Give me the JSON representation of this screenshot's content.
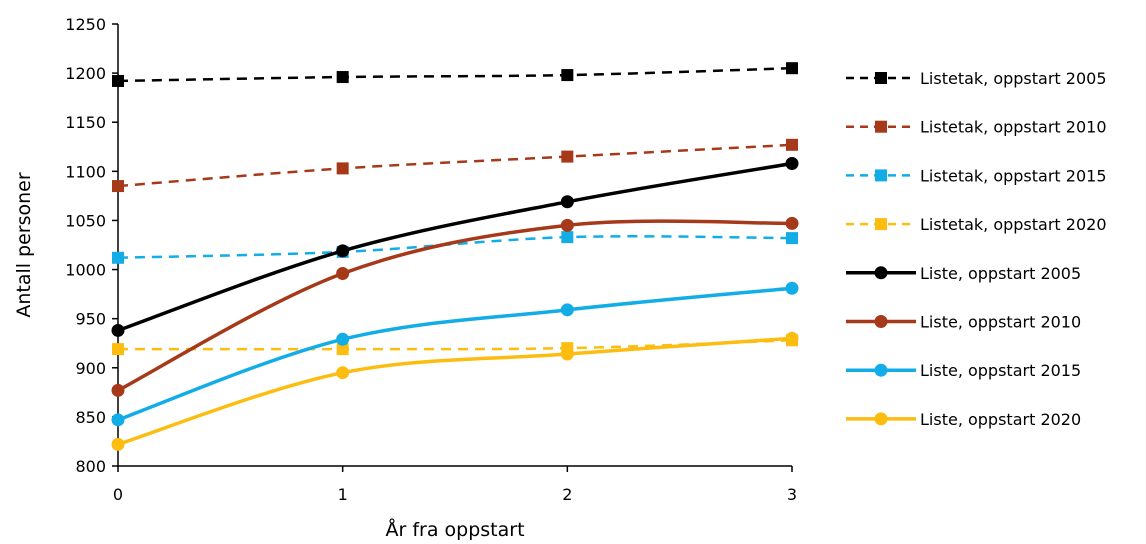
{
  "chart_data": {
    "type": "line",
    "xlabel": "År fra oppstart",
    "ylabel": "Antall personer",
    "x": [
      0,
      1,
      2,
      3
    ],
    "x_tick_labels": [
      "0",
      "1",
      "2",
      "3"
    ],
    "ylim": [
      800,
      1250
    ],
    "y_ticks": [
      800,
      850,
      900,
      950,
      1000,
      1050,
      1100,
      1150,
      1200,
      1250
    ],
    "grid": false,
    "legend_position": "right",
    "series": [
      {
        "name": "Listetak, oppstart 2005",
        "values": [
          1192,
          1196,
          1198,
          1205
        ],
        "color": "#000000",
        "style": "dashed",
        "marker": "square"
      },
      {
        "name": "Listetak, oppstart 2010",
        "values": [
          1085,
          1103,
          1115,
          1127
        ],
        "color": "#a5391a",
        "style": "dashed",
        "marker": "square"
      },
      {
        "name": "Listetak, oppstart 2015",
        "values": [
          1012,
          1018,
          1033,
          1032
        ],
        "color": "#12ade6",
        "style": "dashed",
        "marker": "square"
      },
      {
        "name": "Listetak, oppstart 2020",
        "values": [
          919,
          919,
          920,
          928
        ],
        "color": "#fcbd10",
        "style": "dashed",
        "marker": "square"
      },
      {
        "name": "Liste, oppstart 2005",
        "values": [
          938,
          1019,
          1069,
          1108
        ],
        "color": "#000000",
        "style": "solid",
        "marker": "circle"
      },
      {
        "name": "Liste, oppstart 2010",
        "values": [
          877,
          996,
          1045,
          1047
        ],
        "color": "#a5391a",
        "style": "solid",
        "marker": "circle"
      },
      {
        "name": "Liste, oppstart 2015",
        "values": [
          847,
          929,
          959,
          981
        ],
        "color": "#12ade6",
        "style": "solid",
        "marker": "circle"
      },
      {
        "name": "Liste, oppstart 2020",
        "values": [
          822,
          895,
          914,
          930
        ],
        "color": "#fcbd10",
        "style": "solid",
        "marker": "circle"
      }
    ]
  }
}
